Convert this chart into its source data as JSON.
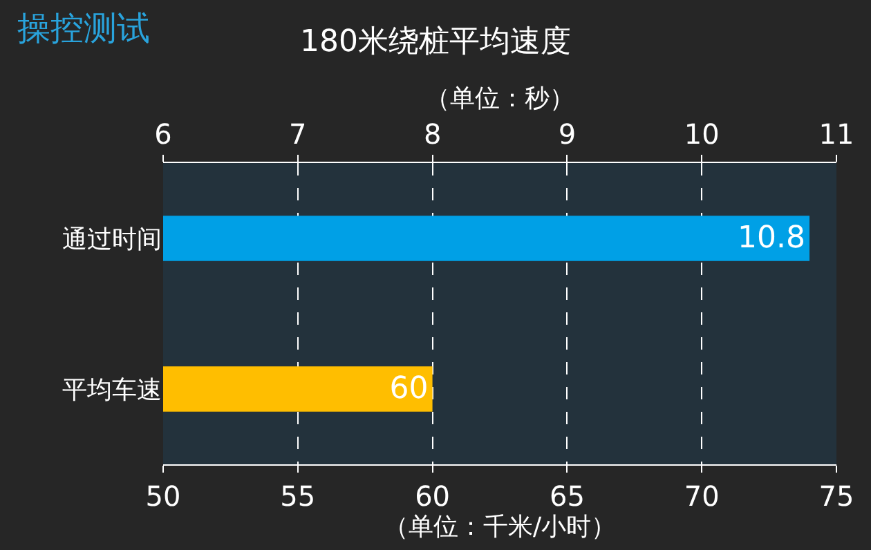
{
  "chart_data": {
    "type": "bar",
    "orientation": "horizontal",
    "title": "操控测试",
    "subtitle": "180米绕桩平均速度",
    "categories": [
      "通过时间",
      "平均车速"
    ],
    "xlabel": "（单位：千米/小时）",
    "x2label": "（单位：秒）",
    "xlim": [
      50,
      75
    ],
    "xticks": [
      50,
      55,
      60,
      65,
      70,
      75
    ],
    "x2lim": [
      6,
      11
    ],
    "x2ticks": [
      6,
      7,
      8,
      9,
      10,
      11
    ],
    "series": [
      {
        "axis": "x2",
        "color": "#00a0e6",
        "values": [
          10.8,
          null
        ]
      },
      {
        "color": "#ffbe00",
        "values": [
          null,
          60
        ]
      }
    ],
    "data_labels": true,
    "grid": "x",
    "legend": false
  }
}
